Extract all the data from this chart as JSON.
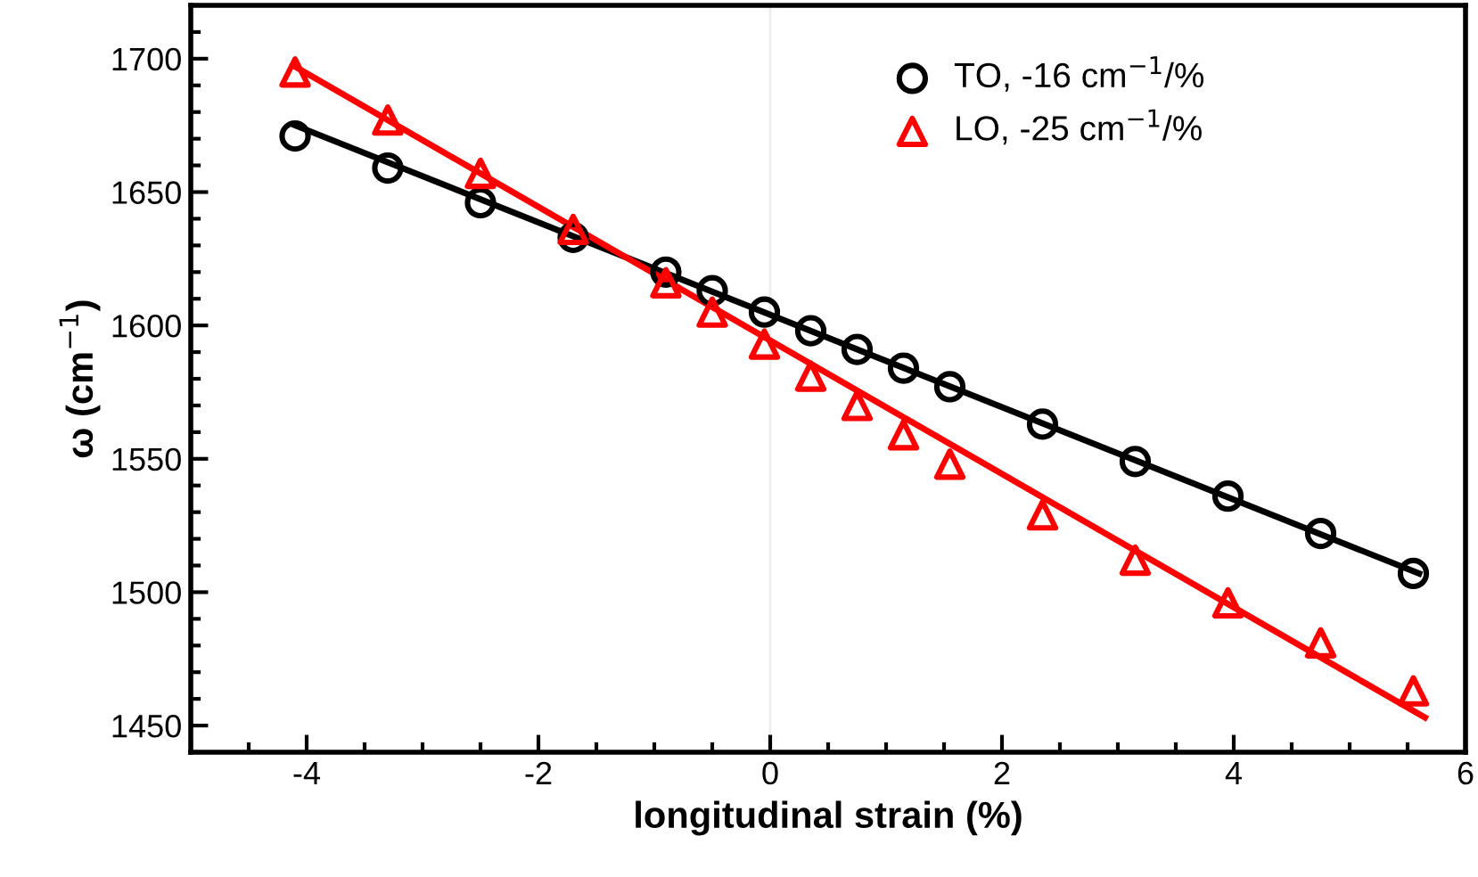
{
  "chart_data": {
    "type": "scatter",
    "xlabel": "longitudinal strain (%)",
    "ylabel": "ω (cm$^{−1}$)",
    "xlim": [
      -5,
      6
    ],
    "ylim": [
      1440,
      1720
    ],
    "xticks": [
      -4,
      -2,
      0,
      2,
      4,
      6
    ],
    "yticks": [
      1450,
      1500,
      1550,
      1600,
      1650,
      1700
    ],
    "legend": "top right",
    "grid": false,
    "ref_lines": [
      {
        "axis": "x",
        "value": 0,
        "color": "#eeeeee"
      }
    ],
    "series": [
      {
        "name": "TO, -16 cm$^{−1}$/%",
        "color": "#000000",
        "marker": "circle",
        "x": [
          -4.1,
          -3.3,
          -2.5,
          -1.7,
          -0.9,
          -0.5,
          -0.05,
          0.35,
          0.75,
          1.15,
          1.55,
          2.35,
          3.15,
          3.95,
          4.75,
          5.55
        ],
        "values": [
          1671,
          1659,
          1646,
          1633,
          1620,
          1613,
          1605,
          1598,
          1591,
          1584,
          1577,
          1563,
          1549,
          1536,
          1522,
          1507
        ]
      },
      {
        "name": "LO, -25 cm$^{−1}$/%",
        "color": "#ff0000",
        "marker": "triangle",
        "x": [
          -4.1,
          -3.3,
          -2.5,
          -1.7,
          -0.9,
          -0.5,
          -0.05,
          0.35,
          0.75,
          1.15,
          1.55,
          2.35,
          3.15,
          3.95,
          4.75,
          5.55
        ],
        "values": [
          1695,
          1677,
          1657,
          1636,
          1616,
          1605,
          1593,
          1581,
          1570,
          1559,
          1548,
          1529,
          1512,
          1496,
          1481,
          1463
        ]
      },
      {
        "type": "line",
        "color": "#000000",
        "x": [
          -4.1,
          5.6
        ],
        "values": [
          1675,
          1507
        ]
      },
      {
        "type": "line",
        "color": "#ff0000",
        "x": [
          -4.1,
          5.65
        ],
        "values": [
          1697,
          1453
        ]
      }
    ]
  }
}
